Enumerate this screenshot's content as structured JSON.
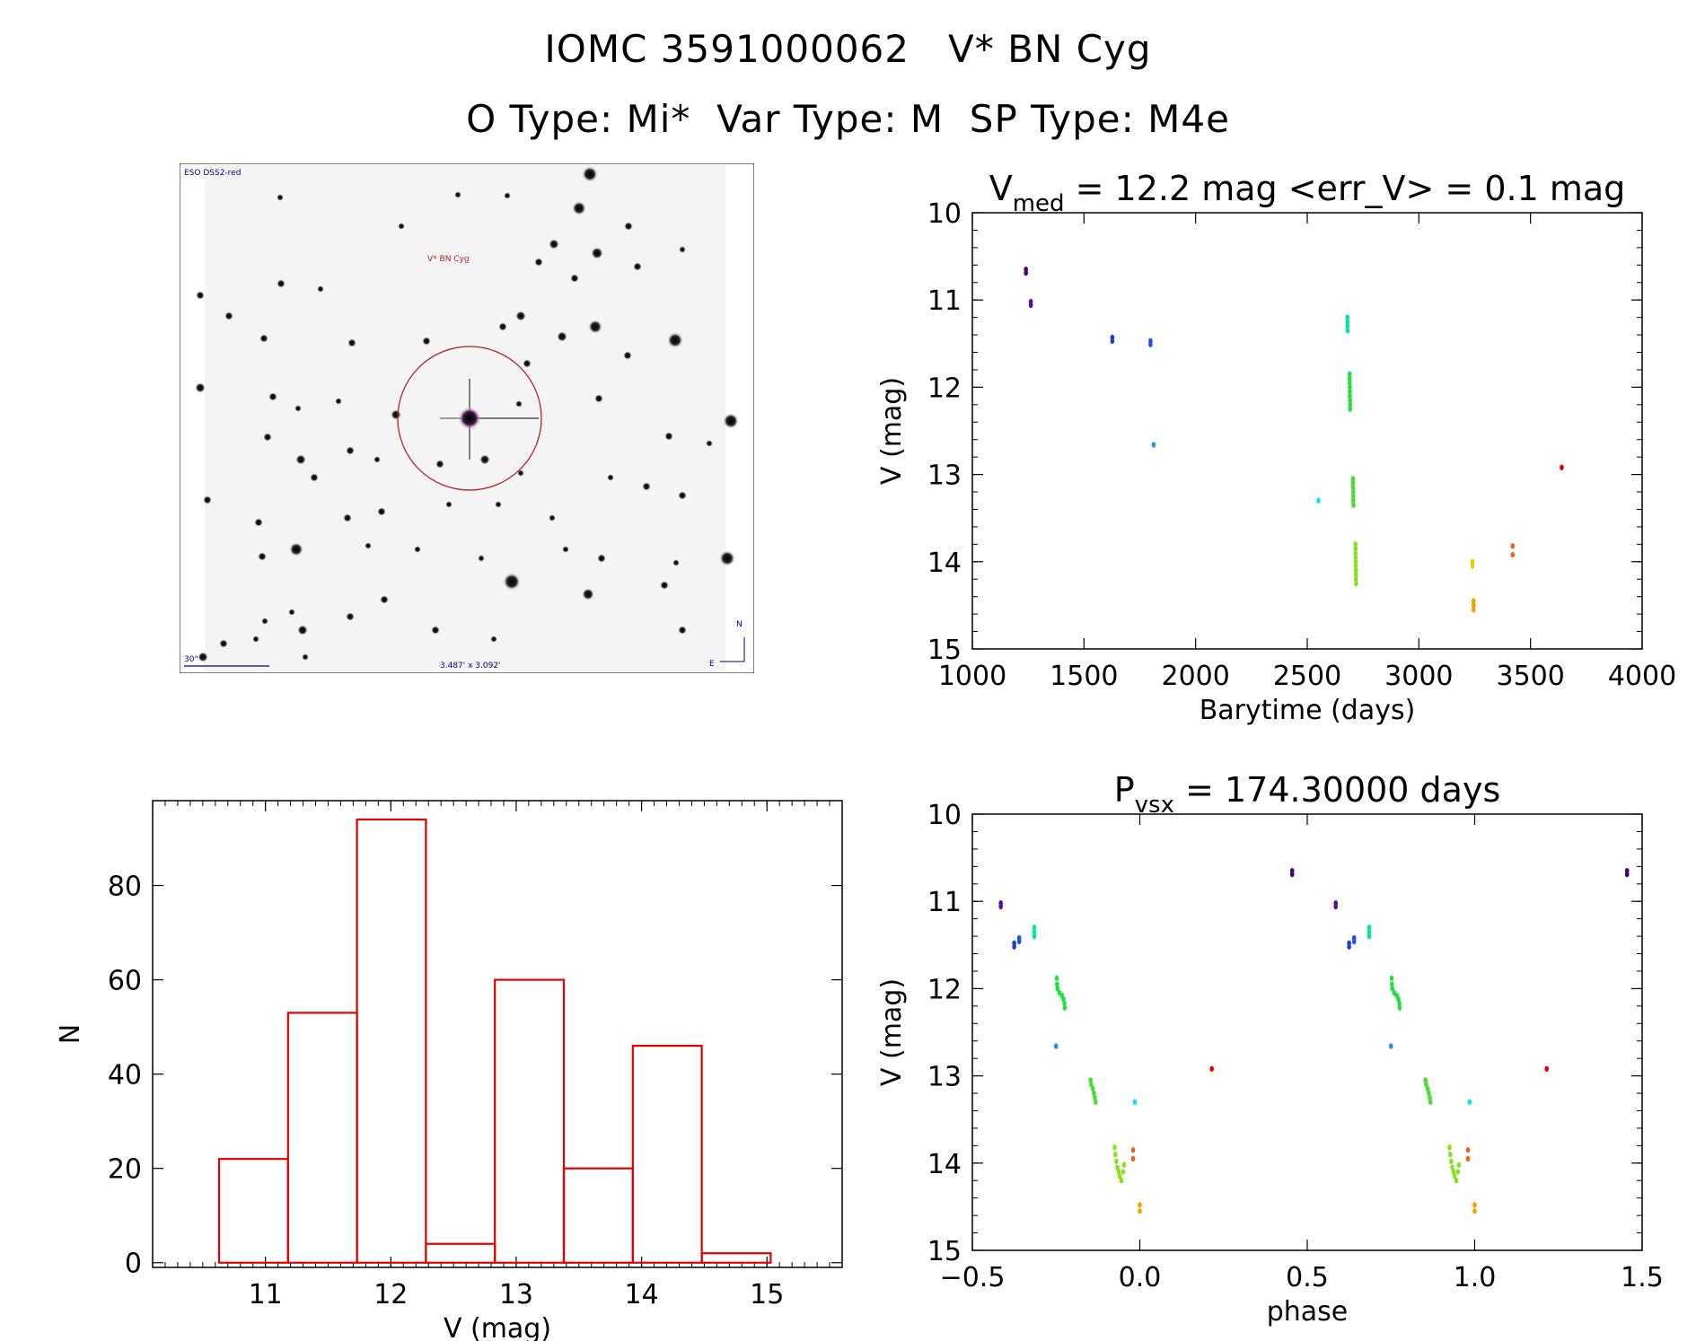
{
  "header": {
    "line1": "IOMC 3591000062   V* BN Cyg",
    "line2": "O Type: Mi*  Var Type: M  SP Type: M4e"
  },
  "finder": {
    "survey_label": "ESO DSS2-red",
    "target_label": "V* BN Cyg",
    "scale_label": "30\"",
    "fov_label": "3.487' x 3.092'",
    "north_label": "N",
    "east_label": "E",
    "circle_color": "#b22222"
  },
  "chart_data": [
    {
      "id": "lightcurve",
      "type": "scatter",
      "title_main": "V",
      "title_sub": "med",
      "title_rest": " = 12.2 mag <err_V> = 0.1 mag",
      "xlabel": "Barytime (days)",
      "ylabel": "V (mag)",
      "xlim": [
        1000,
        4000
      ],
      "ylim": [
        15,
        10
      ],
      "xticks": [
        1000,
        1500,
        2000,
        2500,
        3000,
        3500,
        4000
      ],
      "yticks": [
        10,
        11,
        12,
        13,
        14,
        15
      ],
      "points": [
        {
          "x": 1240,
          "y": 10.65,
          "color": "#4b0082"
        },
        {
          "x": 1240,
          "y": 10.69,
          "color": "#4b0082"
        },
        {
          "x": 1262,
          "y": 11.02,
          "color": "#5a0aa0"
        },
        {
          "x": 1262,
          "y": 11.06,
          "color": "#5a0aa0"
        },
        {
          "x": 1627,
          "y": 11.43,
          "color": "#1e3cd2"
        },
        {
          "x": 1627,
          "y": 11.47,
          "color": "#1e3cd2"
        },
        {
          "x": 1798,
          "y": 11.47,
          "color": "#1e50e6"
        },
        {
          "x": 1798,
          "y": 11.51,
          "color": "#1e50e6"
        },
        {
          "x": 1812,
          "y": 12.66,
          "color": "#1e90ff"
        },
        {
          "x": 2550,
          "y": 13.3,
          "color": "#00e5ff"
        },
        {
          "x": 2680,
          "y": 11.2,
          "color": "#00e6a0"
        },
        {
          "x": 2680,
          "y": 11.25,
          "color": "#00e6a0"
        },
        {
          "x": 2680,
          "y": 11.3,
          "color": "#00e6a0"
        },
        {
          "x": 2681,
          "y": 11.35,
          "color": "#00e6a0"
        },
        {
          "x": 2690,
          "y": 11.85,
          "color": "#22e040"
        },
        {
          "x": 2690,
          "y": 11.9,
          "color": "#22e040"
        },
        {
          "x": 2690,
          "y": 11.95,
          "color": "#22e040"
        },
        {
          "x": 2691,
          "y": 12.0,
          "color": "#22e040"
        },
        {
          "x": 2691,
          "y": 12.05,
          "color": "#22e040"
        },
        {
          "x": 2691,
          "y": 12.1,
          "color": "#22e040"
        },
        {
          "x": 2692,
          "y": 12.15,
          "color": "#22e040"
        },
        {
          "x": 2692,
          "y": 12.2,
          "color": "#22e040"
        },
        {
          "x": 2692,
          "y": 12.25,
          "color": "#22e040"
        },
        {
          "x": 2705,
          "y": 13.05,
          "color": "#44e030"
        },
        {
          "x": 2705,
          "y": 13.1,
          "color": "#44e030"
        },
        {
          "x": 2705,
          "y": 13.15,
          "color": "#44e030"
        },
        {
          "x": 2706,
          "y": 13.2,
          "color": "#44e030"
        },
        {
          "x": 2706,
          "y": 13.25,
          "color": "#44e030"
        },
        {
          "x": 2706,
          "y": 13.3,
          "color": "#44e030"
        },
        {
          "x": 2707,
          "y": 13.35,
          "color": "#44e030"
        },
        {
          "x": 2716,
          "y": 13.8,
          "color": "#88e020"
        },
        {
          "x": 2716,
          "y": 13.85,
          "color": "#88e020"
        },
        {
          "x": 2716,
          "y": 13.9,
          "color": "#88e020"
        },
        {
          "x": 2717,
          "y": 13.95,
          "color": "#88e020"
        },
        {
          "x": 2717,
          "y": 14.0,
          "color": "#88e020"
        },
        {
          "x": 2717,
          "y": 14.05,
          "color": "#88e020"
        },
        {
          "x": 2718,
          "y": 14.1,
          "color": "#88e020"
        },
        {
          "x": 2718,
          "y": 14.15,
          "color": "#88e020"
        },
        {
          "x": 2718,
          "y": 14.2,
          "color": "#88e020"
        },
        {
          "x": 2719,
          "y": 14.25,
          "color": "#88e020"
        },
        {
          "x": 3240,
          "y": 14.0,
          "color": "#e6d000"
        },
        {
          "x": 3240,
          "y": 14.05,
          "color": "#e6d000"
        },
        {
          "x": 3245,
          "y": 14.45,
          "color": "#f0a000"
        },
        {
          "x": 3245,
          "y": 14.5,
          "color": "#f0a000"
        },
        {
          "x": 3245,
          "y": 14.55,
          "color": "#f0a000"
        },
        {
          "x": 3420,
          "y": 13.82,
          "color": "#f06020"
        },
        {
          "x": 3420,
          "y": 13.92,
          "color": "#f06020"
        },
        {
          "x": 3640,
          "y": 12.92,
          "color": "#e00000"
        }
      ]
    },
    {
      "id": "histogram",
      "type": "bar",
      "xlabel": "V (mag)",
      "ylabel": "N",
      "xlim": [
        10.1,
        15.6
      ],
      "ylim": [
        -1,
        98
      ],
      "xticks": [
        11,
        12,
        13,
        14,
        15
      ],
      "yticks": [
        0,
        20,
        40,
        60,
        80
      ],
      "bar_color": "#e00000",
      "bins": [
        {
          "x0": 10.63,
          "x1": 11.18,
          "n": 22
        },
        {
          "x0": 11.18,
          "x1": 11.73,
          "n": 53
        },
        {
          "x0": 11.73,
          "x1": 12.28,
          "n": 94
        },
        {
          "x0": 12.28,
          "x1": 12.83,
          "n": 4
        },
        {
          "x0": 12.83,
          "x1": 13.38,
          "n": 60
        },
        {
          "x0": 13.38,
          "x1": 13.93,
          "n": 20
        },
        {
          "x0": 13.93,
          "x1": 14.48,
          "n": 46
        },
        {
          "x0": 14.48,
          "x1": 15.03,
          "n": 2
        }
      ]
    },
    {
      "id": "phased",
      "type": "scatter",
      "title_main": "P",
      "title_sub": "vsx",
      "title_rest": " = 174.30000 days",
      "xlabel": "phase",
      "ylabel": "V (mag)",
      "xlim": [
        -0.5,
        1.5
      ],
      "ylim": [
        15,
        10
      ],
      "xticks": [
        -0.5,
        0.0,
        0.5,
        1.0,
        1.5
      ],
      "xtick_labels": [
        "−0.5",
        "0.0",
        "0.5",
        "1.0",
        "1.5"
      ],
      "yticks": [
        10,
        11,
        12,
        13,
        14,
        15
      ],
      "points": [
        {
          "x": 0.455,
          "y": 10.65,
          "color": "#4b0082"
        },
        {
          "x": 0.455,
          "y": 10.69,
          "color": "#4b0082"
        },
        {
          "x": 0.585,
          "y": 11.02,
          "color": "#5a0aa0"
        },
        {
          "x": 0.585,
          "y": 11.06,
          "color": "#5a0aa0"
        },
        {
          "x": 0.625,
          "y": 11.48,
          "color": "#1e3cd2"
        },
        {
          "x": 0.625,
          "y": 11.52,
          "color": "#1e3cd2"
        },
        {
          "x": 0.64,
          "y": 11.42,
          "color": "#1e50e6"
        },
        {
          "x": 0.64,
          "y": 11.46,
          "color": "#1e50e6"
        },
        {
          "x": 0.75,
          "y": 12.66,
          "color": "#1e90ff"
        },
        {
          "x": 0.985,
          "y": 13.3,
          "color": "#00e5ff"
        },
        {
          "x": 0.685,
          "y": 11.3,
          "color": "#00e6a0"
        },
        {
          "x": 0.685,
          "y": 11.35,
          "color": "#00e6a0"
        },
        {
          "x": 0.685,
          "y": 11.4,
          "color": "#00e6a0"
        },
        {
          "x": 0.752,
          "y": 11.88,
          "color": "#22e040"
        },
        {
          "x": 0.753,
          "y": 11.95,
          "color": "#22e040"
        },
        {
          "x": 0.754,
          "y": 12.0,
          "color": "#22e040"
        },
        {
          "x": 0.76,
          "y": 12.05,
          "color": "#22e040"
        },
        {
          "x": 0.768,
          "y": 12.08,
          "color": "#22e040"
        },
        {
          "x": 0.772,
          "y": 12.12,
          "color": "#22e040"
        },
        {
          "x": 0.775,
          "y": 12.17,
          "color": "#22e040"
        },
        {
          "x": 0.776,
          "y": 12.22,
          "color": "#22e040"
        },
        {
          "x": 0.853,
          "y": 13.05,
          "color": "#44e030"
        },
        {
          "x": 0.855,
          "y": 13.1,
          "color": "#44e030"
        },
        {
          "x": 0.86,
          "y": 13.15,
          "color": "#44e030"
        },
        {
          "x": 0.863,
          "y": 13.2,
          "color": "#44e030"
        },
        {
          "x": 0.866,
          "y": 13.25,
          "color": "#44e030"
        },
        {
          "x": 0.868,
          "y": 13.3,
          "color": "#44e030"
        },
        {
          "x": 0.925,
          "y": 13.82,
          "color": "#88e020"
        },
        {
          "x": 0.927,
          "y": 13.9,
          "color": "#88e020"
        },
        {
          "x": 0.93,
          "y": 13.98,
          "color": "#88e020"
        },
        {
          "x": 0.933,
          "y": 14.05,
          "color": "#88e020"
        },
        {
          "x": 0.937,
          "y": 14.1,
          "color": "#88e020"
        },
        {
          "x": 0.94,
          "y": 14.15,
          "color": "#88e020"
        },
        {
          "x": 0.945,
          "y": 14.2,
          "color": "#88e020"
        },
        {
          "x": 0.95,
          "y": 14.1,
          "color": "#88e020"
        },
        {
          "x": 0.953,
          "y": 14.02,
          "color": "#88e020"
        },
        {
          "x": 0.98,
          "y": 13.85,
          "color": "#f06020"
        },
        {
          "x": 0.98,
          "y": 13.95,
          "color": "#f06020"
        },
        {
          "x": 1.0,
          "y": 14.48,
          "color": "#f0a000"
        },
        {
          "x": 1.0,
          "y": 14.55,
          "color": "#f0a000"
        },
        {
          "x": 1.215,
          "y": 12.92,
          "color": "#e00000"
        },
        {
          "x": 1.455,
          "y": 10.65,
          "color": "#4b0082"
        },
        {
          "x": 1.455,
          "y": 10.69,
          "color": "#4b0082"
        },
        {
          "x": -0.415,
          "y": 11.02,
          "color": "#5a0aa0"
        },
        {
          "x": -0.415,
          "y": 11.06,
          "color": "#5a0aa0"
        },
        {
          "x": -0.375,
          "y": 11.48,
          "color": "#1e3cd2"
        },
        {
          "x": -0.375,
          "y": 11.52,
          "color": "#1e3cd2"
        },
        {
          "x": -0.36,
          "y": 11.42,
          "color": "#1e50e6"
        },
        {
          "x": -0.36,
          "y": 11.46,
          "color": "#1e50e6"
        },
        {
          "x": -0.25,
          "y": 12.66,
          "color": "#1e90ff"
        },
        {
          "x": -0.015,
          "y": 13.3,
          "color": "#00e5ff"
        },
        {
          "x": -0.315,
          "y": 11.3,
          "color": "#00e6a0"
        },
        {
          "x": -0.315,
          "y": 11.35,
          "color": "#00e6a0"
        },
        {
          "x": -0.315,
          "y": 11.4,
          "color": "#00e6a0"
        },
        {
          "x": -0.248,
          "y": 11.88,
          "color": "#22e040"
        },
        {
          "x": -0.247,
          "y": 11.95,
          "color": "#22e040"
        },
        {
          "x": -0.246,
          "y": 12.0,
          "color": "#22e040"
        },
        {
          "x": -0.24,
          "y": 12.05,
          "color": "#22e040"
        },
        {
          "x": -0.232,
          "y": 12.08,
          "color": "#22e040"
        },
        {
          "x": -0.228,
          "y": 12.12,
          "color": "#22e040"
        },
        {
          "x": -0.225,
          "y": 12.17,
          "color": "#22e040"
        },
        {
          "x": -0.224,
          "y": 12.22,
          "color": "#22e040"
        },
        {
          "x": -0.147,
          "y": 13.05,
          "color": "#44e030"
        },
        {
          "x": -0.145,
          "y": 13.1,
          "color": "#44e030"
        },
        {
          "x": -0.14,
          "y": 13.15,
          "color": "#44e030"
        },
        {
          "x": -0.137,
          "y": 13.2,
          "color": "#44e030"
        },
        {
          "x": -0.134,
          "y": 13.25,
          "color": "#44e030"
        },
        {
          "x": -0.132,
          "y": 13.3,
          "color": "#44e030"
        },
        {
          "x": -0.075,
          "y": 13.82,
          "color": "#88e020"
        },
        {
          "x": -0.073,
          "y": 13.9,
          "color": "#88e020"
        },
        {
          "x": -0.07,
          "y": 13.98,
          "color": "#88e020"
        },
        {
          "x": -0.067,
          "y": 14.05,
          "color": "#88e020"
        },
        {
          "x": -0.063,
          "y": 14.1,
          "color": "#88e020"
        },
        {
          "x": -0.06,
          "y": 14.15,
          "color": "#88e020"
        },
        {
          "x": -0.055,
          "y": 14.2,
          "color": "#88e020"
        },
        {
          "x": -0.05,
          "y": 14.1,
          "color": "#88e020"
        },
        {
          "x": -0.047,
          "y": 14.02,
          "color": "#88e020"
        },
        {
          "x": -0.02,
          "y": 13.85,
          "color": "#f06020"
        },
        {
          "x": -0.02,
          "y": 13.95,
          "color": "#f06020"
        },
        {
          "x": 0.0,
          "y": 14.48,
          "color": "#f0a000"
        },
        {
          "x": 0.0,
          "y": 14.55,
          "color": "#f0a000"
        },
        {
          "x": 0.215,
          "y": 12.92,
          "color": "#e00000"
        }
      ]
    }
  ]
}
